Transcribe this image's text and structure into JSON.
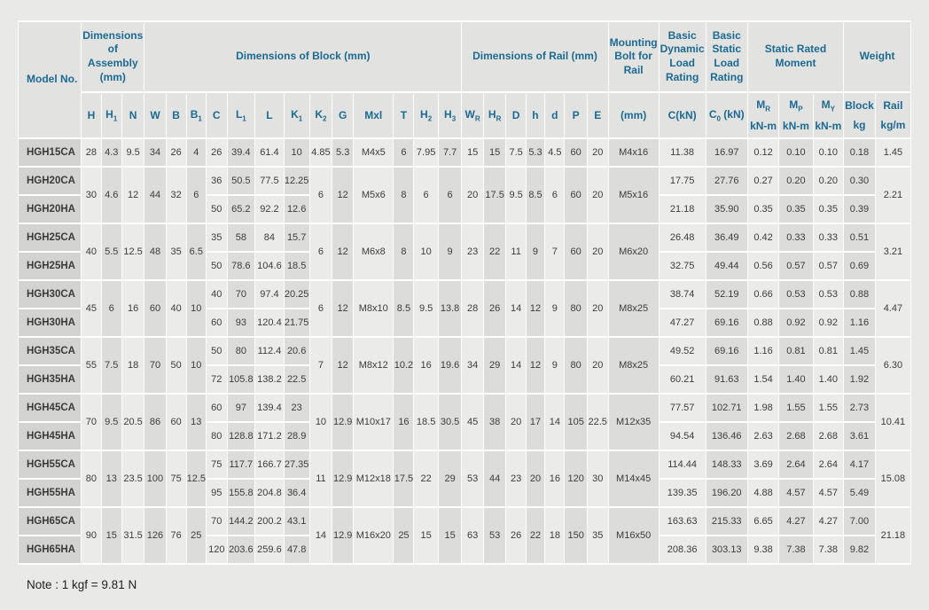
{
  "note": "Note : 1 kgf = 9.81 N",
  "colors": {
    "header_text": "#1c6a94",
    "body_text": "#3c3c3c",
    "page_bg": "#e9e9e7",
    "grid_lines": "#ffffff",
    "header_cell_bg": "#e2e2e0",
    "column_light": "#ebebe9",
    "column_dark": "#dcdcda",
    "model_cell_bg": "#d3d3d1"
  },
  "table": {
    "model_header": "Model No.",
    "groups": [
      {
        "label": "Dimensions of Assembly (mm)",
        "cols": 3
      },
      {
        "label": "Dimensions of Block (mm)",
        "cols": 13
      },
      {
        "label": "Dimensions of Rail (mm)",
        "cols": 7
      },
      {
        "label": "Mounting Bolt for Rail",
        "cols": 1
      },
      {
        "label": "Basic Dynamic Load Rating",
        "cols": 1
      },
      {
        "label": "Basic Static Load Rating",
        "cols": 1
      },
      {
        "label": "Static Rated Moment",
        "cols": 3
      },
      {
        "label": "Weight",
        "cols": 2
      }
    ],
    "columns": [
      {
        "key": "h",
        "pre": "H"
      },
      {
        "key": "h1",
        "pre": "H",
        "sub": "1"
      },
      {
        "key": "n",
        "pre": "N"
      },
      {
        "key": "w",
        "pre": "W"
      },
      {
        "key": "b",
        "pre": "B"
      },
      {
        "key": "b1",
        "pre": "B",
        "sub": "1"
      },
      {
        "key": "c",
        "pre": "C"
      },
      {
        "key": "l1",
        "pre": "L",
        "sub": "1"
      },
      {
        "key": "l",
        "pre": "L"
      },
      {
        "key": "k1",
        "pre": "K",
        "sub": "1"
      },
      {
        "key": "k2",
        "pre": "K",
        "sub": "2"
      },
      {
        "key": "g",
        "pre": "G"
      },
      {
        "key": "mxl",
        "pre": "Mxl"
      },
      {
        "key": "t",
        "pre": "T"
      },
      {
        "key": "h2",
        "pre": "H",
        "sub": "2"
      },
      {
        "key": "h3",
        "pre": "H",
        "sub": "3"
      },
      {
        "key": "wr",
        "pre": "W",
        "sub": "R"
      },
      {
        "key": "hr",
        "pre": "H",
        "sub": "R"
      },
      {
        "key": "d-rail",
        "pre": "D"
      },
      {
        "key": "h-rail",
        "pre": "h"
      },
      {
        "key": "d-bolt",
        "pre": "d"
      },
      {
        "key": "p",
        "pre": "P"
      },
      {
        "key": "e",
        "pre": "E"
      },
      {
        "key": "bolt-mm",
        "pre": "(mm)"
      },
      {
        "key": "c-dynamic",
        "pre": "C(kN)"
      },
      {
        "key": "c0-static",
        "pre": "C",
        "sub": "0",
        "post": " (kN)"
      },
      {
        "key": "mr",
        "pre": "M",
        "sub": "R",
        "unit": "kN-m"
      },
      {
        "key": "mp",
        "pre": "M",
        "sub": "P",
        "unit": "kN-m"
      },
      {
        "key": "my",
        "pre": "M",
        "sub": "Y",
        "unit": "kN-m"
      },
      {
        "key": "weight-block",
        "pre": "Block",
        "unit": "kg"
      },
      {
        "key": "weight-rail",
        "pre": "Rail",
        "unit": "kg/m"
      }
    ],
    "groups_data": [
      {
        "models": [
          "HGH15CA"
        ],
        "assembly_block": [
          "28",
          "4.3",
          "9.5",
          "34",
          "26",
          "4"
        ],
        "block_rows": [
          [
            "26",
            "39.4",
            "61.4",
            "10"
          ]
        ],
        "mid": [
          "4.85",
          "5.3",
          "M4x5",
          "6",
          "7.95",
          "7.7",
          "15",
          "15",
          "7.5",
          "5.3",
          "4.5",
          "60",
          "20",
          "M4x16"
        ],
        "load_rows": [
          [
            "11.38",
            "16.97",
            "0.12",
            "0.10",
            "0.10",
            "0.18"
          ]
        ],
        "rail_weight": "1.45"
      },
      {
        "models": [
          "HGH20CA",
          "HGH20HA"
        ],
        "assembly_block": [
          "30",
          "4.6",
          "12",
          "44",
          "32",
          "6"
        ],
        "block_rows": [
          [
            "36",
            "50.5",
            "77.5",
            "12.25"
          ],
          [
            "50",
            "65.2",
            "92.2",
            "12.6"
          ]
        ],
        "mid": [
          "6",
          "12",
          "M5x6",
          "8",
          "6",
          "6",
          "20",
          "17.5",
          "9.5",
          "8.5",
          "6",
          "60",
          "20",
          "M5x16"
        ],
        "load_rows": [
          [
            "17.75",
            "27.76",
            "0.27",
            "0.20",
            "0.20",
            "0.30"
          ],
          [
            "21.18",
            "35.90",
            "0.35",
            "0.35",
            "0.35",
            "0.39"
          ]
        ],
        "rail_weight": "2.21"
      },
      {
        "models": [
          "HGH25CA",
          "HGH25HA"
        ],
        "assembly_block": [
          "40",
          "5.5",
          "12.5",
          "48",
          "35",
          "6.5"
        ],
        "block_rows": [
          [
            "35",
            "58",
            "84",
            "15.7"
          ],
          [
            "50",
            "78.6",
            "104.6",
            "18.5"
          ]
        ],
        "mid": [
          "6",
          "12",
          "M6x8",
          "8",
          "10",
          "9",
          "23",
          "22",
          "11",
          "9",
          "7",
          "60",
          "20",
          "M6x20"
        ],
        "load_rows": [
          [
            "26.48",
            "36.49",
            "0.42",
            "0.33",
            "0.33",
            "0.51"
          ],
          [
            "32.75",
            "49.44",
            "0.56",
            "0.57",
            "0.57",
            "0.69"
          ]
        ],
        "rail_weight": "3.21"
      },
      {
        "models": [
          "HGH30CA",
          "HGH30HA"
        ],
        "assembly_block": [
          "45",
          "6",
          "16",
          "60",
          "40",
          "10"
        ],
        "block_rows": [
          [
            "40",
            "70",
            "97.4",
            "20.25"
          ],
          [
            "60",
            "93",
            "120.4",
            "21.75"
          ]
        ],
        "mid": [
          "6",
          "12",
          "M8x10",
          "8.5",
          "9.5",
          "13.8",
          "28",
          "26",
          "14",
          "12",
          "9",
          "80",
          "20",
          "M8x25"
        ],
        "load_rows": [
          [
            "38.74",
            "52.19",
            "0.66",
            "0.53",
            "0.53",
            "0.88"
          ],
          [
            "47.27",
            "69.16",
            "0.88",
            "0.92",
            "0.92",
            "1.16"
          ]
        ],
        "rail_weight": "4.47"
      },
      {
        "models": [
          "HGH35CA",
          "HGH35HA"
        ],
        "assembly_block": [
          "55",
          "7.5",
          "18",
          "70",
          "50",
          "10"
        ],
        "block_rows": [
          [
            "50",
            "80",
            "112.4",
            "20.6"
          ],
          [
            "72",
            "105.8",
            "138.2",
            "22.5"
          ]
        ],
        "mid": [
          "7",
          "12",
          "M8x12",
          "10.2",
          "16",
          "19.6",
          "34",
          "29",
          "14",
          "12",
          "9",
          "80",
          "20",
          "M8x25"
        ],
        "load_rows": [
          [
            "49.52",
            "69.16",
            "1.16",
            "0.81",
            "0.81",
            "1.45"
          ],
          [
            "60.21",
            "91.63",
            "1.54",
            "1.40",
            "1.40",
            "1.92"
          ]
        ],
        "rail_weight": "6.30"
      },
      {
        "models": [
          "HGH45CA",
          "HGH45HA"
        ],
        "assembly_block": [
          "70",
          "9.5",
          "20.5",
          "86",
          "60",
          "13"
        ],
        "block_rows": [
          [
            "60",
            "97",
            "139.4",
            "23"
          ],
          [
            "80",
            "128.8",
            "171.2",
            "28.9"
          ]
        ],
        "mid": [
          "10",
          "12.9",
          "M10x17",
          "16",
          "18.5",
          "30.5",
          "45",
          "38",
          "20",
          "17",
          "14",
          "105",
          "22.5",
          "M12x35"
        ],
        "load_rows": [
          [
            "77.57",
            "102.71",
            "1.98",
            "1.55",
            "1.55",
            "2.73"
          ],
          [
            "94.54",
            "136.46",
            "2.63",
            "2.68",
            "2.68",
            "3.61"
          ]
        ],
        "rail_weight": "10.41"
      },
      {
        "models": [
          "HGH55CA",
          "HGH55HA"
        ],
        "assembly_block": [
          "80",
          "13",
          "23.5",
          "100",
          "75",
          "12.5"
        ],
        "block_rows": [
          [
            "75",
            "117.7",
            "166.7",
            "27.35"
          ],
          [
            "95",
            "155.8",
            "204.8",
            "36.4"
          ]
        ],
        "mid": [
          "11",
          "12.9",
          "M12x18",
          "17.5",
          "22",
          "29",
          "53",
          "44",
          "23",
          "20",
          "16",
          "120",
          "30",
          "M14x45"
        ],
        "load_rows": [
          [
            "114.44",
            "148.33",
            "3.69",
            "2.64",
            "2.64",
            "4.17"
          ],
          [
            "139.35",
            "196.20",
            "4.88",
            "4.57",
            "4.57",
            "5.49"
          ]
        ],
        "rail_weight": "15.08"
      },
      {
        "models": [
          "HGH65CA",
          "HGH65HA"
        ],
        "assembly_block": [
          "90",
          "15",
          "31.5",
          "126",
          "76",
          "25"
        ],
        "block_rows": [
          [
            "70",
            "144.2",
            "200.2",
            "43.1"
          ],
          [
            "120",
            "203.6",
            "259.6",
            "47.8"
          ]
        ],
        "mid": [
          "14",
          "12.9",
          "M16x20",
          "25",
          "15",
          "15",
          "63",
          "53",
          "26",
          "22",
          "18",
          "150",
          "35",
          "M16x50"
        ],
        "load_rows": [
          [
            "163.63",
            "215.33",
            "6.65",
            "4.27",
            "4.27",
            "7.00"
          ],
          [
            "208.36",
            "303.13",
            "9.38",
            "7.38",
            "7.38",
            "9.82"
          ]
        ],
        "rail_weight": "21.18"
      }
    ]
  }
}
